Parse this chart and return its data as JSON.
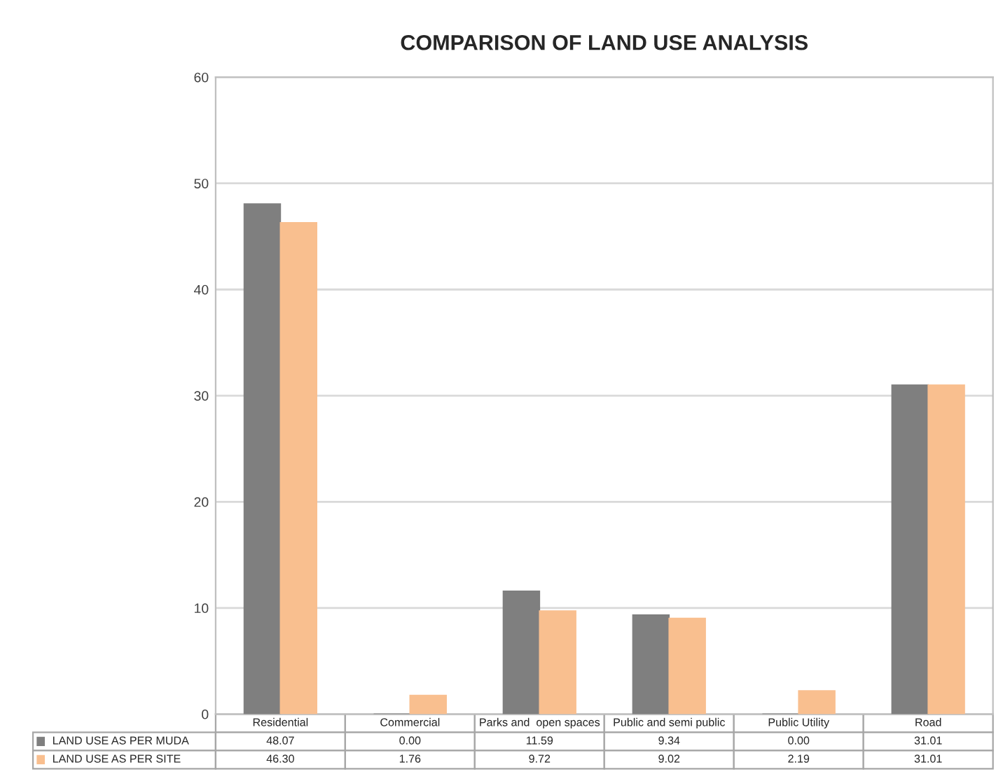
{
  "chart_data": {
    "type": "bar",
    "title": "COMPARISON OF LAND USE ANALYSIS",
    "categories": [
      "Residential",
      "Commercial",
      "Parks and  open spaces",
      "Public and semi public",
      "Public Utility",
      "Road"
    ],
    "series": [
      {
        "name": "LAND USE AS PER MUDA",
        "color": "#7f7f7f",
        "values": [
          48.07,
          0.0,
          11.59,
          9.34,
          0.0,
          31.01
        ],
        "value_labels": [
          "48.07",
          "0.00",
          "11.59",
          "9.34",
          "0.00",
          "31.01"
        ]
      },
      {
        "name": "LAND USE AS PER SITE",
        "color": "#f9bf8f",
        "values": [
          46.3,
          1.76,
          9.72,
          9.02,
          2.19,
          31.01
        ],
        "value_labels": [
          "46.30",
          "1.76",
          "9.72",
          "9.02",
          "2.19",
          "31.01"
        ]
      }
    ],
    "ylim": [
      0,
      60
    ],
    "yticks": [
      0,
      10,
      20,
      30,
      40,
      50,
      60
    ],
    "grid": "y",
    "legend": "bottom"
  }
}
